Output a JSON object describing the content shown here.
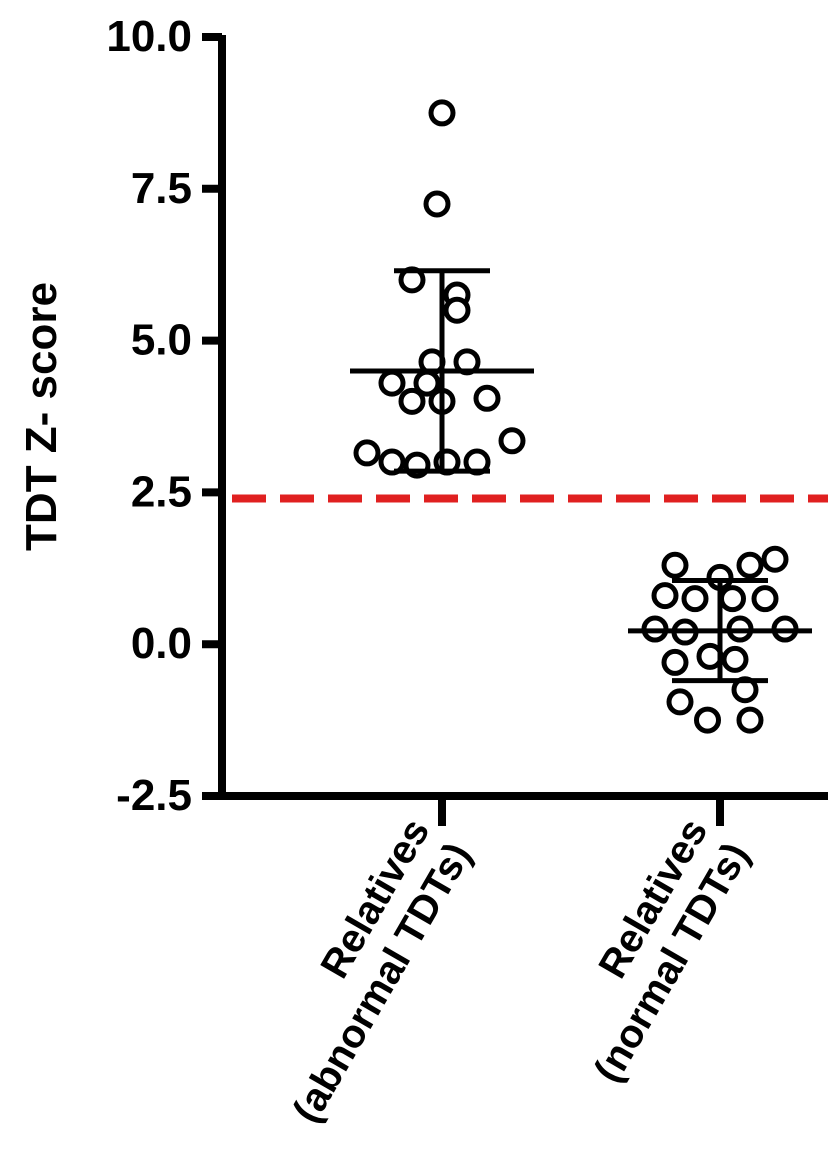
{
  "chart_data": {
    "type": "scatter",
    "ylabel": "TDT Z- score",
    "ylim": [
      -2.5,
      10.0
    ],
    "yticks": [
      -2.5,
      0.0,
      2.5,
      5.0,
      7.5,
      10.0
    ],
    "ytick_labels": [
      "-2.5",
      "0.0",
      "2.5",
      "5.0",
      "7.5",
      "10.0"
    ],
    "categories": [
      [
        "Relatives",
        "(abnormal TDTs)"
      ],
      [
        "Relatives",
        "(normal TDTs)"
      ]
    ],
    "threshold": {
      "value": 2.4,
      "color": "#e02020",
      "style": "dashed"
    },
    "groups": [
      {
        "mean": 4.5,
        "sd_upper": 6.15,
        "sd_lower": 2.85,
        "points": [
          [
            0.0,
            8.75
          ],
          [
            -0.02,
            7.25
          ],
          [
            -0.12,
            6.0
          ],
          [
            0.06,
            5.75
          ],
          [
            0.06,
            5.5
          ],
          [
            -0.04,
            4.65
          ],
          [
            0.1,
            4.65
          ],
          [
            -0.2,
            4.3
          ],
          [
            -0.06,
            4.3
          ],
          [
            -0.12,
            4.0
          ],
          [
            0.0,
            4.0
          ],
          [
            0.18,
            4.05
          ],
          [
            0.28,
            3.35
          ],
          [
            -0.3,
            3.15
          ],
          [
            -0.2,
            3.0
          ],
          [
            -0.1,
            2.95
          ],
          [
            0.02,
            3.0
          ],
          [
            0.14,
            3.0
          ]
        ]
      },
      {
        "mean": 0.22,
        "sd_upper": 1.05,
        "sd_lower": -0.6,
        "points": [
          [
            -0.18,
            1.3
          ],
          [
            0.0,
            1.1
          ],
          [
            0.12,
            1.3
          ],
          [
            0.22,
            1.4
          ],
          [
            -0.22,
            0.8
          ],
          [
            -0.1,
            0.75
          ],
          [
            0.05,
            0.75
          ],
          [
            0.18,
            0.75
          ],
          [
            -0.26,
            0.25
          ],
          [
            -0.14,
            0.2
          ],
          [
            0.08,
            0.25
          ],
          [
            0.26,
            0.25
          ],
          [
            -0.18,
            -0.3
          ],
          [
            -0.04,
            -0.2
          ],
          [
            0.06,
            -0.25
          ],
          [
            -0.16,
            -0.95
          ],
          [
            0.1,
            -0.75
          ],
          [
            -0.05,
            -1.25
          ],
          [
            0.12,
            -1.25
          ]
        ]
      }
    ]
  }
}
